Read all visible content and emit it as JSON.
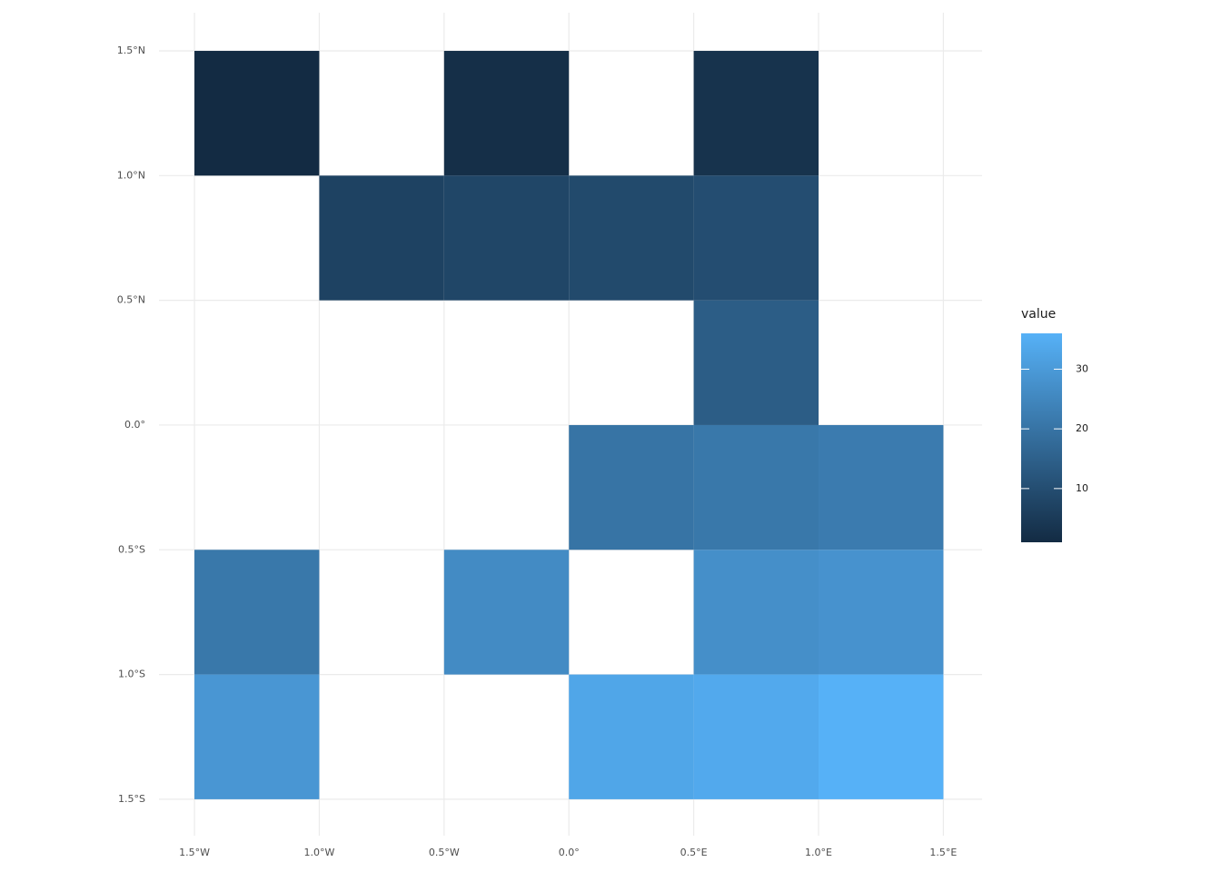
{
  "chart_data": {
    "type": "heatmap",
    "x": [
      -1.25,
      -0.25,
      0.75,
      -0.75,
      -0.25,
      0.25,
      0.75,
      0.75,
      0.25,
      0.75,
      1.25,
      -1.25,
      -0.25,
      0.75,
      1.25,
      -1.25,
      0.25,
      0.75,
      1.25
    ],
    "y": [
      1.25,
      1.25,
      1.25,
      0.75,
      0.75,
      0.75,
      0.75,
      0.25,
      -0.25,
      -0.25,
      -0.25,
      -0.75,
      -0.75,
      -0.75,
      -0.75,
      -1.25,
      -1.25,
      -1.25,
      -1.25
    ],
    "values": [
      1,
      2,
      3,
      7,
      8,
      9,
      10,
      14,
      20,
      21,
      22,
      21,
      26,
      27,
      28,
      29,
      33,
      34,
      36
    ],
    "xlim": [
      -1.642,
      1.655
    ],
    "ylim": [
      -1.646,
      1.653
    ],
    "xticks": [
      {
        "value": -1.5,
        "label": "1.5°W"
      },
      {
        "value": -1.0,
        "label": "1.0°W"
      },
      {
        "value": -0.5,
        "label": "0.5°W"
      },
      {
        "value": 0,
        "label": "0.0°"
      },
      {
        "value": 0.5,
        "label": "0.5°E"
      },
      {
        "value": 1.0,
        "label": "1.0°E"
      },
      {
        "value": 1.5,
        "label": "1.5°E"
      }
    ],
    "yticks": [
      {
        "value": -1.5,
        "label": "1.5°S"
      },
      {
        "value": -1.0,
        "label": "1.0°S"
      },
      {
        "value": -0.5,
        "label": "0.5°S"
      },
      {
        "value": 0,
        "label": "0.0°"
      },
      {
        "value": 0.5,
        "label": "0.5°N"
      },
      {
        "value": 1.0,
        "label": "1.0°N"
      },
      {
        "value": 1.5,
        "label": "1.5°N"
      }
    ],
    "grid": true,
    "legend": {
      "title": "value",
      "position": "right",
      "lim": [
        1,
        36
      ],
      "ticks": [
        10,
        20,
        30
      ],
      "low": "#132B43",
      "high": "#56B1F7"
    }
  }
}
